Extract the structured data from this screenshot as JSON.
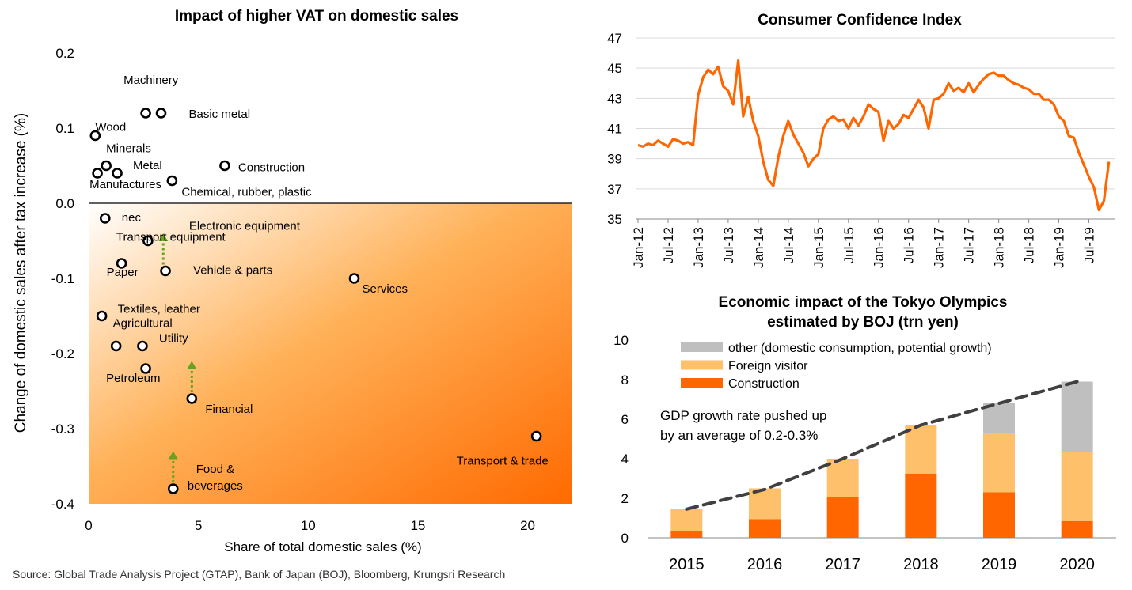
{
  "source_note": "Source: Global Trade Analysis Project (GTAP), Bank of Japan (BOJ), Bloomberg, Krungsri Research",
  "colors": {
    "orange": "#FF6600",
    "light_orange": "#FFC06B",
    "gray": "#BFBFBF",
    "dashed": "#404040",
    "arrow": "#6AA121"
  },
  "chart_data": [
    {
      "type": "scatter",
      "title": "Impact of higher VAT on domestic sales",
      "xlabel": "Share of total domestic sales (%)",
      "ylabel": "Change of domestic sales after tax increase (%)",
      "xlim": [
        0,
        22
      ],
      "ylim": [
        -0.4,
        0.2
      ],
      "x_ticks": [
        "0",
        "5",
        "10",
        "15",
        "20"
      ],
      "y_ticks": [
        "0.2",
        "0.1",
        "0.0",
        "-0.1",
        "-0.2",
        "-0.3",
        "-0.4"
      ],
      "background": "gradient white to orange, increasing towards bottom-right (below 0.0)",
      "points": [
        {
          "name": "Machinery",
          "x": 2.6,
          "y": 0.12
        },
        {
          "name": "Basic metal",
          "x": 3.3,
          "y": 0.12
        },
        {
          "name": "Wood",
          "x": 0.3,
          "y": 0.09
        },
        {
          "name": "Minerals",
          "x": 0.8,
          "y": 0.05
        },
        {
          "name": "Metal",
          "x": 1.3,
          "y": 0.04
        },
        {
          "name": "Manufactures",
          "x": 0.4,
          "y": 0.04
        },
        {
          "name": "Construction",
          "x": 6.2,
          "y": 0.05
        },
        {
          "name": "Chemical, rubber, plastic",
          "x": 3.8,
          "y": 0.03
        },
        {
          "name": "nec",
          "x": 0.75,
          "y": -0.02
        },
        {
          "name": "Transport equipment",
          "x": 2.7,
          "y": -0.05
        },
        {
          "name": "Electronic equipment",
          "x": 2.7,
          "y": -0.05
        },
        {
          "name": "Paper",
          "x": 1.5,
          "y": -0.08
        },
        {
          "name": "Vehicle & parts",
          "x": 3.5,
          "y": -0.09
        },
        {
          "name": "Services",
          "x": 12.1,
          "y": -0.1
        },
        {
          "name": "Textiles, leather",
          "x": 0.6,
          "y": -0.15
        },
        {
          "name": "Agricultural",
          "x": 1.25,
          "y": -0.19
        },
        {
          "name": "Utility",
          "x": 2.45,
          "y": -0.19
        },
        {
          "name": "Petroleum",
          "x": 2.6,
          "y": -0.22
        },
        {
          "name": "Financial",
          "x": 4.7,
          "y": -0.26
        },
        {
          "name": "Transport & trade",
          "x": 20.4,
          "y": -0.31
        },
        {
          "name": "Food & beverages",
          "x": 3.85,
          "y": -0.38
        }
      ],
      "annotations": [
        {
          "type": "up-arrow",
          "x": 3.4,
          "from_y": -0.09,
          "to_y": -0.04
        },
        {
          "type": "up-arrow",
          "x": 4.7,
          "from_y": -0.26,
          "to_y": -0.21
        },
        {
          "type": "up-arrow",
          "x": 3.85,
          "from_y": -0.38,
          "to_y": -0.33
        }
      ]
    },
    {
      "type": "line",
      "title": "Consumer Confidence Index",
      "ylim": [
        35,
        47
      ],
      "y_ticks": [
        "47",
        "45",
        "43",
        "41",
        "39",
        "37",
        "35"
      ],
      "x_ticks": [
        "Jan-12",
        "Jul-12",
        "Jan-13",
        "Jul-13",
        "Jan-14",
        "Jul-14",
        "Jan-15",
        "Jul-15",
        "Jan-16",
        "Jul-16",
        "Jan-17",
        "Jul-17",
        "Jan-18",
        "Jul-18",
        "Jan-19",
        "Jul-19"
      ],
      "start": "Jan-12",
      "frequency": "monthly",
      "values": [
        39.9,
        39.8,
        40.0,
        39.9,
        40.2,
        40.0,
        39.8,
        40.3,
        40.2,
        40.0,
        40.1,
        39.9,
        43.2,
        44.4,
        44.9,
        44.6,
        45.1,
        43.8,
        43.5,
        42.6,
        45.5,
        41.8,
        43.1,
        41.5,
        40.5,
        38.8,
        37.6,
        37.2,
        39.1,
        40.5,
        41.5,
        40.6,
        40.0,
        39.4,
        38.5,
        39.0,
        39.3,
        41.0,
        41.6,
        41.8,
        41.5,
        41.6,
        41.0,
        41.7,
        41.2,
        41.8,
        42.6,
        42.3,
        42.1,
        40.2,
        41.5,
        41.0,
        41.3,
        41.9,
        41.7,
        42.3,
        42.9,
        42.4,
        41.0,
        42.9,
        43.0,
        43.3,
        44.0,
        43.5,
        43.7,
        43.4,
        44.0,
        43.4,
        43.9,
        44.3,
        44.6,
        44.7,
        44.5,
        44.5,
        44.2,
        44.0,
        43.9,
        43.7,
        43.6,
        43.3,
        43.3,
        42.9,
        42.9,
        42.6,
        41.8,
        41.5,
        40.5,
        40.4,
        39.4,
        38.6,
        37.8,
        37.1,
        35.6,
        36.2,
        38.8
      ]
    },
    {
      "type": "bar",
      "stacked": true,
      "title": "Economic impact of the Tokyo Olympics estimated by BOJ (trn yen)",
      "title_lines": [
        "Economic impact of the Tokyo Olympics",
        "estimated by BOJ (trn yen)"
      ],
      "categories": [
        "2015",
        "2016",
        "2017",
        "2018",
        "2019",
        "2020"
      ],
      "ylim": [
        0,
        10
      ],
      "y_ticks": [
        "10",
        "8",
        "6",
        "4",
        "2",
        "0"
      ],
      "series": [
        {
          "name": "Construction",
          "color": "#FF6600",
          "values": [
            0.35,
            0.95,
            2.05,
            3.25,
            2.3,
            0.85
          ]
        },
        {
          "name": "Foreign visitor",
          "color": "#FFC06B",
          "values": [
            1.1,
            1.55,
            1.95,
            2.45,
            2.95,
            3.5
          ]
        },
        {
          "name": "other (domestic consumption, potential growth)",
          "color": "#BFBFBF",
          "values": [
            0,
            0,
            0,
            0,
            1.55,
            3.55
          ]
        }
      ],
      "legend_order": [
        "other (domestic consumption, potential growth)",
        "Foreign visitor",
        "Construction"
      ],
      "trend_line": {
        "style": "dashed",
        "values": [
          1.45,
          2.45,
          4.0,
          5.7,
          6.8,
          7.9
        ]
      },
      "annotation_lines": [
        "GDP growth rate pushed up",
        "by an average of 0.2-0.3%"
      ]
    }
  ]
}
